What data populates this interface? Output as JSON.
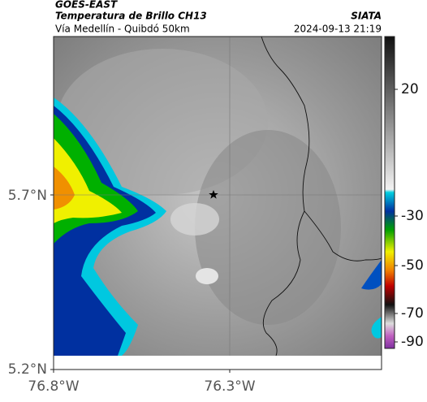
{
  "header": {
    "satellite": "GOES-EAST",
    "title": "Temperatura de Brillo CH13",
    "subtitle": "Vía Medellín - Quibdó 50km",
    "source": "SIATA",
    "datetime": "2024-09-13 21:19"
  },
  "map": {
    "lat_labels": [
      "5.7°N",
      "5.2°N"
    ],
    "lon_labels": [
      "76.8°W",
      "76.3°W"
    ]
  },
  "colorbar": {
    "ticks": [
      "20",
      "-30",
      "-50",
      "-70",
      "-90"
    ]
  }
}
